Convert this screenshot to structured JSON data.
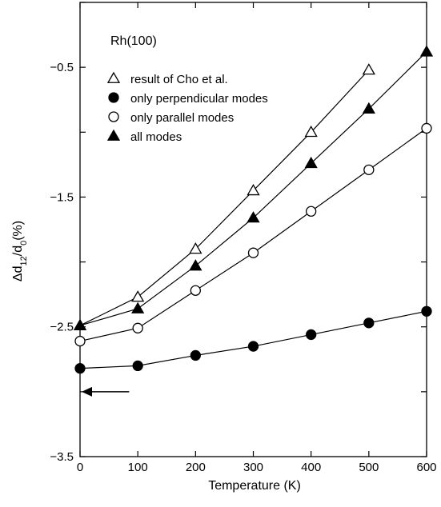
{
  "chart_data": {
    "type": "line",
    "title": "",
    "annotation": "Rh(100)",
    "xlabel": "Temperature (K)",
    "ylabel": {
      "main": "Δd",
      "sub1": "12",
      "mid": "/d",
      "sub2": "0",
      "tail": "(%)"
    },
    "xlim": [
      0,
      600
    ],
    "ylim": [
      -3.5,
      0
    ],
    "xticks": [
      0,
      100,
      200,
      300,
      400,
      500,
      600
    ],
    "yticks": [
      -3.5,
      -2.5,
      -1.5,
      -0.5
    ],
    "ytick_labels": [
      "−3.5",
      "−2.5",
      "−1.5",
      "−0.5"
    ],
    "grid": false,
    "legend_position": "top-left",
    "arrow": {
      "x_from": 85,
      "x_to": 0,
      "y": -3.0
    },
    "series": [
      {
        "name": "result of Cho et al.",
        "marker": "triangle-open",
        "x": [
          0,
          100,
          200,
          300,
          400,
          500
        ],
        "y": [
          -2.49,
          -2.27,
          -1.9,
          -1.45,
          -1.0,
          -0.52
        ]
      },
      {
        "name": "only perpendicular modes",
        "marker": "circle-filled",
        "x": [
          0,
          100,
          200,
          300,
          400,
          500,
          600
        ],
        "y": [
          -2.82,
          -2.8,
          -2.72,
          -2.65,
          -2.56,
          -2.47,
          -2.38
        ]
      },
      {
        "name": "only parallel modes",
        "marker": "circle-open",
        "x": [
          0,
          100,
          200,
          300,
          400,
          500,
          600
        ],
        "y": [
          -2.61,
          -2.51,
          -2.22,
          -1.93,
          -1.61,
          -1.29,
          -0.97
        ]
      },
      {
        "name": "all modes",
        "marker": "triangle-filled",
        "x": [
          0,
          100,
          200,
          300,
          400,
          500,
          600
        ],
        "y": [
          -2.49,
          -2.36,
          -2.03,
          -1.66,
          -1.24,
          -0.82,
          -0.38
        ]
      }
    ]
  }
}
